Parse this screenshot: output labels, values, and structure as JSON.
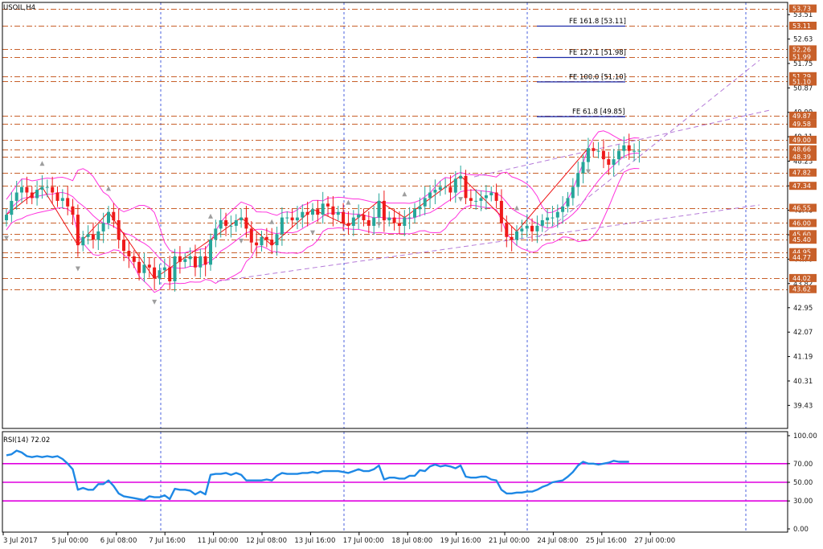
{
  "symbol_label": "USOIL,H4",
  "rsi_label": "RSI(14) 72.02",
  "colors": {
    "bull": "#26a69a",
    "bear": "#ef1a1a",
    "band": "#ff33dd",
    "level": "#c8602a",
    "channel": "#b57bd8",
    "vgrid": "#1f3bd6",
    "rsi_line": "#1e88e5",
    "rsi_level": "#e000e0",
    "zigzag": "#ee1111",
    "fe_line": "#1b2aa8"
  },
  "chart_data": [
    {
      "type": "candlestick",
      "ylim": [
        38.6,
        53.95
      ],
      "y_ticks": [
        "53.51",
        "52.63",
        "51.75",
        "50.87",
        "49.99",
        "49.11",
        "48.23",
        "47.34",
        "46.46",
        "45.58",
        "44.70",
        "43.82",
        "42.95",
        "42.07",
        "41.19",
        "40.31",
        "39.43"
      ],
      "level_boxes": [
        {
          "label": "53.73",
          "value": 53.73
        },
        {
          "label": "53.11",
          "value": 53.11
        },
        {
          "label": "52.26",
          "value": 52.26
        },
        {
          "label": "51.99",
          "value": 51.99
        },
        {
          "label": "51.29",
          "value": 51.29
        },
        {
          "label": "51.10",
          "value": 51.1
        },
        {
          "label": "49.87",
          "value": 49.87
        },
        {
          "label": "49.58",
          "value": 49.58
        },
        {
          "label": "49.00",
          "value": 49.0
        },
        {
          "label": "48.66",
          "value": 48.66
        },
        {
          "label": "48.39",
          "value": 48.39
        },
        {
          "label": "47.82",
          "value": 47.82
        },
        {
          "label": "47.34",
          "value": 47.34
        },
        {
          "label": "46.55",
          "value": 46.55
        },
        {
          "label": "46.00",
          "value": 46.0
        },
        {
          "label": "45.60",
          "value": 45.6
        },
        {
          "label": "45.40",
          "value": 45.4
        },
        {
          "label": "44.95",
          "value": 44.95
        },
        {
          "label": "44.77",
          "value": 44.77
        },
        {
          "label": "44.02",
          "value": 44.02
        },
        {
          "label": "43.62",
          "value": 43.62
        }
      ],
      "fe_labels": [
        {
          "label": "FE 161.8 [53.11]",
          "value": 53.11
        },
        {
          "label": "FE 127.1 [51.98]",
          "value": 51.98
        },
        {
          "label": "FE 100.0 [51.10]",
          "value": 51.1
        },
        {
          "label": "FE 61.8 [49.85]",
          "value": 49.85
        }
      ],
      "x_labels": [
        "3 Jul 2017",
        "5 Jul 00:00",
        "6 Jul 08:00",
        "7 Jul 16:00",
        "11 Jul 00:00",
        "12 Jul 08:00",
        "13 Jul 16:00",
        "17 Jul 00:00",
        "18 Jul 08:00",
        "19 Jul 16:00",
        "21 Jul 00:00",
        "24 Jul 08:00",
        "25 Jul 16:00",
        "27 Jul 00:00"
      ],
      "close": [
        46.3,
        46.8,
        47.1,
        47.3,
        47.1,
        46.9,
        47.2,
        47.3,
        47.3,
        47.1,
        46.8,
        46.9,
        46.6,
        46.3,
        45.2,
        45.5,
        45.6,
        45.4,
        45.7,
        46.0,
        46.4,
        46.1,
        45.4,
        45.0,
        44.8,
        44.6,
        44.2,
        44.5,
        44.4,
        44.0,
        44.3,
        44.4,
        43.9,
        44.8,
        44.6,
        44.7,
        44.8,
        44.4,
        44.8,
        44.5,
        45.4,
        45.8,
        46.1,
        45.9,
        45.9,
        46.1,
        46.2,
        45.8,
        45.3,
        45.2,
        45.5,
        45.4,
        45.2,
        45.6,
        46.2,
        46.2,
        46.1,
        46.2,
        46.4,
        46.3,
        46.5,
        46.3,
        46.7,
        46.6,
        46.3,
        46.4,
        46.0,
        45.9,
        46.2,
        46.3,
        46.1,
        45.9,
        46.2,
        46.8,
        46.1,
        46.2,
        46.0,
        45.9,
        46.2,
        46.2,
        46.5,
        46.6,
        46.9,
        47.1,
        47.2,
        47.3,
        47.3,
        47.1,
        47.6,
        47.7,
        46.9,
        46.8,
        46.8,
        46.9,
        47.0,
        47.1,
        46.8,
        46.0,
        45.5,
        45.4,
        45.7,
        45.8,
        45.9,
        45.7,
        45.9,
        46.1,
        46.2,
        46.2,
        46.4,
        46.6,
        46.9,
        47.3,
        47.8,
        48.2,
        48.7,
        48.6,
        48.6,
        48.3,
        48.1,
        48.3,
        48.6,
        48.8,
        48.6,
        48.6,
        48.6
      ],
      "rsi": {
        "ylim": [
          0,
          100
        ],
        "levels": [
          30,
          50,
          70
        ],
        "tick_labels": [
          "100.00",
          "70.00",
          "50.00",
          "30.00",
          "0.00"
        ],
        "values": [
          79,
          80,
          84,
          82,
          78,
          77,
          78,
          77,
          78,
          77,
          78,
          75,
          70,
          64,
          42,
          44,
          42,
          42,
          48,
          48,
          52,
          46,
          38,
          35,
          34,
          33,
          32,
          31,
          35,
          34,
          34,
          36,
          32,
          43,
          42,
          42,
          41,
          37,
          40,
          37,
          58,
          59,
          59,
          60,
          58,
          60,
          58,
          52,
          52,
          52,
          52,
          53,
          52,
          57,
          60,
          59,
          59,
          59,
          60,
          60,
          61,
          60,
          62,
          62,
          62,
          62,
          61,
          60,
          62,
          64,
          62,
          62,
          64,
          68,
          53,
          55,
          55,
          54,
          54,
          57,
          57,
          63,
          62,
          67,
          69,
          67,
          68,
          67,
          65,
          68,
          56,
          55,
          55,
          56,
          56,
          53,
          52,
          42,
          38,
          38,
          39,
          39,
          40,
          40,
          42,
          45,
          47,
          50,
          51,
          52,
          56,
          61,
          68,
          72,
          70,
          70,
          69,
          70,
          71,
          73,
          72,
          72,
          72
        ]
      }
    }
  ]
}
